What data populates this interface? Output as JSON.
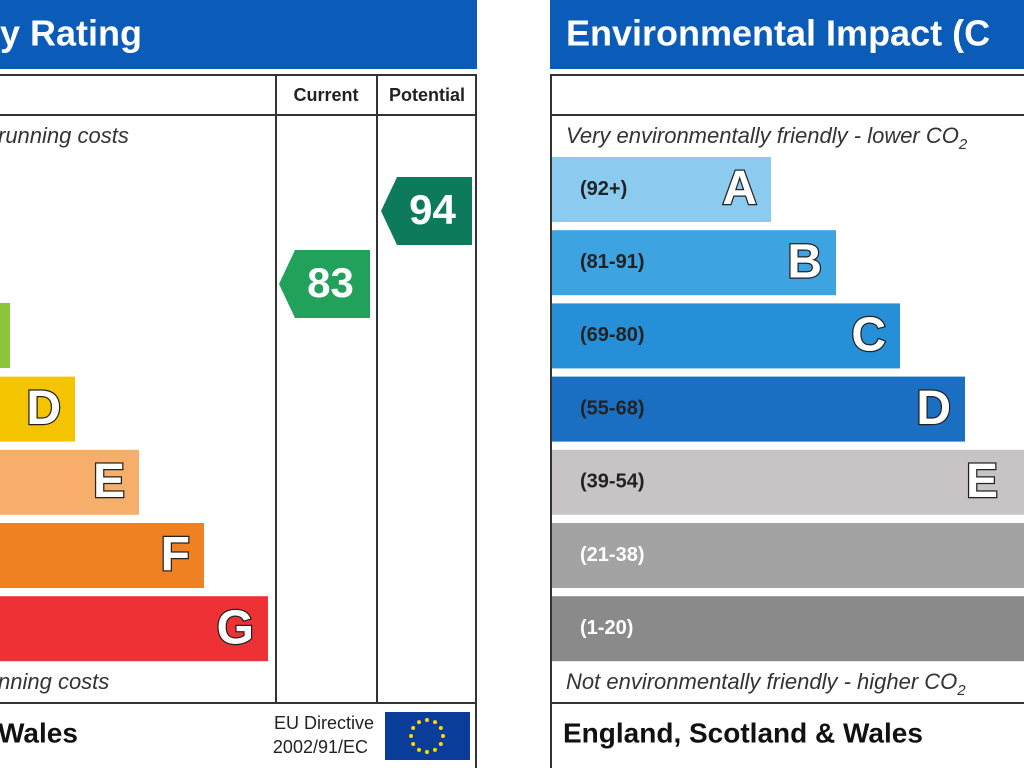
{
  "left": {
    "title": "y Rating",
    "columns": [
      "Current",
      "Potential"
    ],
    "top_note": "running costs",
    "bands": [
      "D",
      "E",
      "F",
      "G"
    ],
    "bottom_note": "nning costs",
    "current": 83,
    "potential": 94,
    "footer": "Wales",
    "directive": [
      "EU Directive",
      "2002/91/EC"
    ]
  },
  "right": {
    "title": "Environmental Impact (C",
    "top_note": "Very environmentally friendly - lower CO",
    "top_note_sub": "2",
    "bands": [
      {
        "range": "(92+)",
        "letter": "A"
      },
      {
        "range": "(81-91)",
        "letter": "B"
      },
      {
        "range": "(69-80)",
        "letter": "C"
      },
      {
        "range": "(55-68)",
        "letter": "D"
      },
      {
        "range": "(39-54)",
        "letter": "E"
      },
      {
        "range": "(21-38)"
      },
      {
        "range": "(1-20)"
      }
    ],
    "bottom_note": "Not environmentally friendly - higher CO",
    "bottom_note_sub": "2",
    "footer": "England, Scotland & Wales"
  }
}
